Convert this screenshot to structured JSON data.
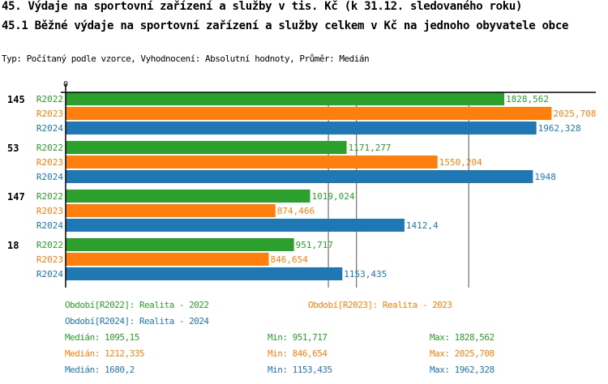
{
  "title": "45. Výdaje na sportovní zařízení a služby v tis. Kč (k 31.12. sledovaného roku)",
  "subtitle": "45.1 Běžné výdaje na sportovní zařízení a služby celkem v Kč na jednoho obyvatele obce",
  "info": "Typ: Počítaný podle vzorce, Vyhodnocení: Absolutní hodnoty, Průměr: Medián",
  "colors": {
    "R2022": "#2ca02c",
    "R2023": "#ff7f0e",
    "R2024": "#1f77b4"
  },
  "chart_data": {
    "type": "bar",
    "orientation": "horizontal",
    "xtick": "0",
    "categories": [
      "145",
      "53",
      "147",
      "18"
    ],
    "series": [
      {
        "name": "R2022",
        "values": [
          1828.562,
          1171.277,
          1019.024,
          951.717
        ],
        "labels": [
          "1828,562",
          "1171,277",
          "1019,024",
          "951,717"
        ]
      },
      {
        "name": "R2023",
        "values": [
          2025.708,
          1550.204,
          874.466,
          846.654
        ],
        "labels": [
          "2025,708",
          "1550,204",
          "874,466",
          "846,654"
        ]
      },
      {
        "name": "R2024",
        "values": [
          1962.328,
          1948,
          1412.4,
          1153.435
        ],
        "labels": [
          "1962,328",
          "1948",
          "1412,4",
          "1153,435"
        ]
      }
    ],
    "medians": [
      1095.15,
      1212.335,
      1680.2
    ]
  },
  "legend": {
    "R2022": "Období[R2022]: Realita - 2022",
    "R2023": "Období[R2023]: Realita - 2023",
    "R2024": "Období[R2024]: Realita - 2024"
  },
  "stats": [
    {
      "median": "Medián: 1095,15",
      "min": "Min: 951,717",
      "max": "Max: 1828,562"
    },
    {
      "median": "Medián: 1212,335",
      "min": "Min: 846,654",
      "max": "Max: 2025,708"
    },
    {
      "median": "Medián: 1680,2",
      "min": "Min: 1153,435",
      "max": "Max: 1962,328"
    }
  ]
}
